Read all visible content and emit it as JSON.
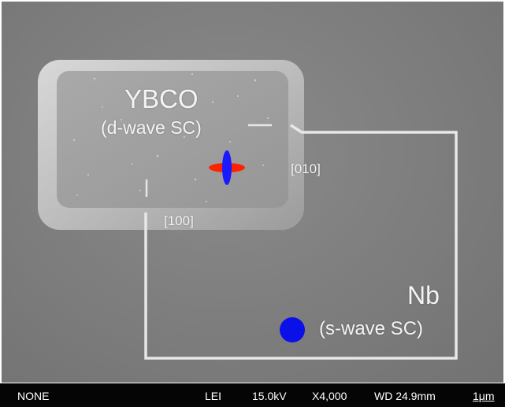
{
  "labels": {
    "ybco": "YBCO",
    "ybco_sub": "(d-wave SC)",
    "dir_010": "[010]",
    "dir_100": "[100]",
    "nb": "Nb",
    "nb_sub": "(s-wave SC)"
  },
  "info_bar": {
    "detector": "NONE",
    "mode": "LEI",
    "voltage": "15.0kV",
    "magnification": "X4,000",
    "working_distance": "WD 24.9mm",
    "scale": "1μm"
  },
  "colors": {
    "d_wave_positive_lobes": "#1a1aff",
    "d_wave_negative_lobes": "#ff2200",
    "s_wave_symbol": "#0a10e8",
    "nb_wire": "#e8e8e8",
    "info_bar_bg": "#050505"
  },
  "icons": {
    "d_wave": "d-wave-orbital-icon",
    "s_wave": "s-wave-orbital-icon"
  }
}
